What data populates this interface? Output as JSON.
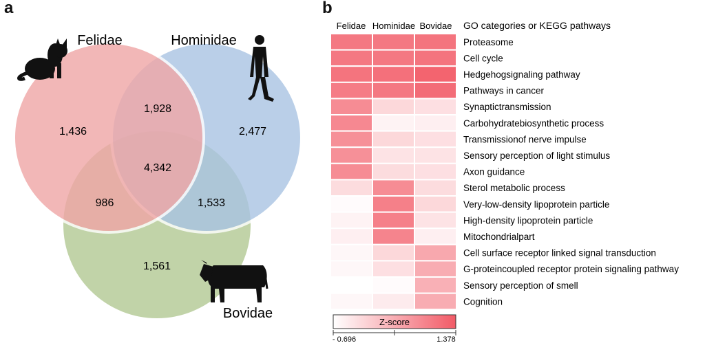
{
  "panel_a_label": "a",
  "panel_b_label": "b",
  "chart_data": [
    {
      "type": "venn",
      "sets": [
        "Felidae",
        "Hominidae",
        "Bovidae"
      ],
      "colors": {
        "Felidae": "#f0a6a6",
        "Hominidae": "#a9c4e3",
        "Bovidae": "#b7cc9a"
      },
      "regions": [
        {
          "sets": [
            "Felidae"
          ],
          "value": "1,436"
        },
        {
          "sets": [
            "Hominidae"
          ],
          "value": "2,477"
        },
        {
          "sets": [
            "Bovidae"
          ],
          "value": "1,561"
        },
        {
          "sets": [
            "Felidae",
            "Hominidae"
          ],
          "value": "1,928"
        },
        {
          "sets": [
            "Felidae",
            "Bovidae"
          ],
          "value": "986"
        },
        {
          "sets": [
            "Hominidae",
            "Bovidae"
          ],
          "value": "1,533"
        },
        {
          "sets": [
            "Felidae",
            "Hominidae",
            "Bovidae"
          ],
          "value": "4,342"
        }
      ],
      "icons": [
        "cat-silhouette-icon",
        "walking-man-silhouette-icon",
        "cow-silhouette-icon"
      ]
    },
    {
      "type": "heatmap",
      "columns": [
        "Felidae",
        "Hominidae",
        "Bovidae"
      ],
      "row_header": "GO categories or KEGG pathways",
      "rows": [
        {
          "label": "Proteasome",
          "values": [
            1.0,
            1.0,
            1.05
          ]
        },
        {
          "label": "Cell cycle",
          "values": [
            1.0,
            1.0,
            1.05
          ]
        },
        {
          "label": "Hedgehogsignaling pathway",
          "values": [
            1.05,
            1.1,
            1.25
          ]
        },
        {
          "label": "Pathways in cancer",
          "values": [
            0.95,
            1.0,
            1.15
          ]
        },
        {
          "label": "Synaptictransmission",
          "values": [
            0.75,
            -0.2,
            -0.3
          ]
        },
        {
          "label": "Carbohydratebiosynthetic process",
          "values": [
            0.8,
            -0.55,
            -0.5
          ]
        },
        {
          "label": "Transmissionof nerve impulse",
          "values": [
            0.7,
            -0.2,
            -0.3
          ]
        },
        {
          "label": "Sensory perception of light stimulus",
          "values": [
            0.7,
            -0.35,
            -0.35
          ]
        },
        {
          "label": "Axon guidance",
          "values": [
            0.75,
            -0.25,
            -0.3
          ]
        },
        {
          "label": "Sterol metabolic process",
          "values": [
            -0.25,
            0.75,
            -0.25
          ]
        },
        {
          "label": "Very-low-density lipoprotein particle",
          "values": [
            -0.65,
            0.9,
            -0.2
          ]
        },
        {
          "label": "High-density lipoprotein particle",
          "values": [
            -0.55,
            0.9,
            -0.35
          ]
        },
        {
          "label": "Mitochondrialpart",
          "values": [
            -0.5,
            0.85,
            -0.5
          ]
        },
        {
          "label": "Cell surface receptor linked signal transduction",
          "values": [
            -0.6,
            -0.2,
            0.4
          ]
        },
        {
          "label": "G-proteincoupled receptor protein signaling pathway",
          "values": [
            -0.6,
            -0.3,
            0.35
          ]
        },
        {
          "label": "Sensory perception of smell",
          "values": [
            -0.7,
            -0.65,
            0.3
          ]
        },
        {
          "label": "Cognition",
          "values": [
            -0.6,
            -0.45,
            0.35
          ]
        }
      ],
      "colorbar": {
        "title": "Z-score",
        "min": -0.696,
        "max": 1.378,
        "min_label": "- 0.696",
        "max_label": "1.378"
      },
      "color_low": "#ffffff",
      "color_high": "#f25a66"
    }
  ]
}
